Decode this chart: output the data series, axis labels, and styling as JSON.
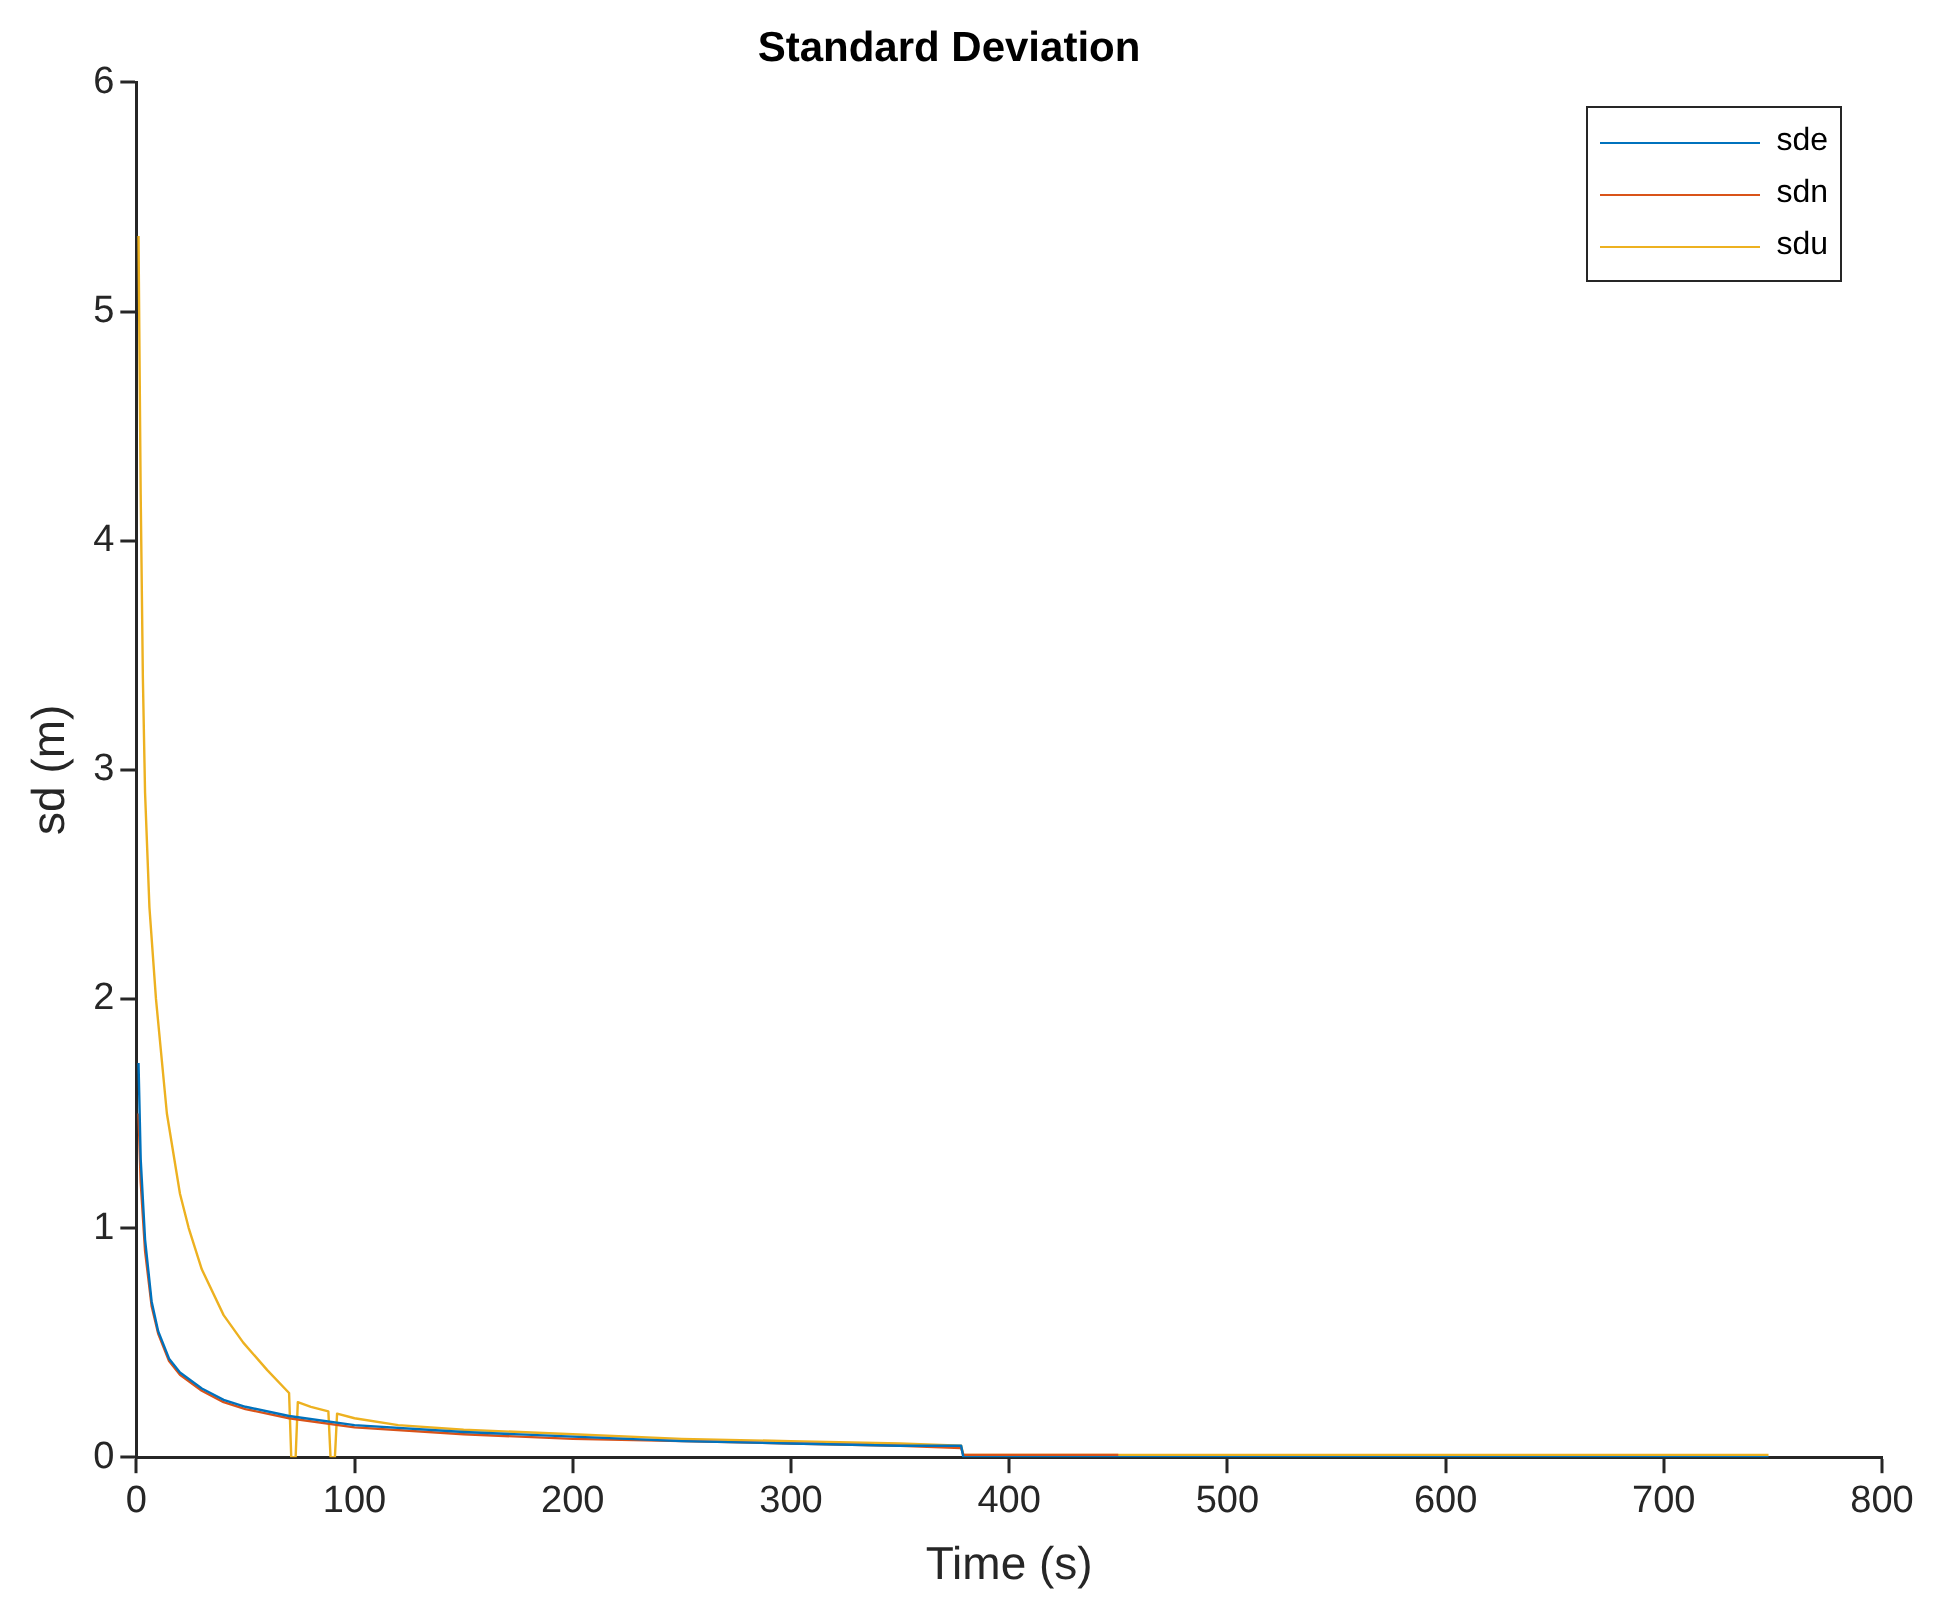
{
  "chart_data": {
    "type": "line",
    "title": "Standard Deviation",
    "xlabel": "Time (s)",
    "ylabel": "sd (m)",
    "xlim": [
      0,
      800
    ],
    "xticks": [
      0,
      100,
      200,
      300,
      400,
      500,
      600,
      700,
      800
    ],
    "ylim": [
      0,
      6
    ],
    "yticks": [
      0,
      1,
      2,
      3,
      4,
      5,
      6
    ],
    "grid": false,
    "legend": "top right",
    "marker": "none",
    "line_style": "solid",
    "series": [
      {
        "name": "sde",
        "color": "#0072bd",
        "x": [
          1,
          2,
          4,
          7,
          10,
          15,
          20,
          30,
          40,
          50,
          70,
          100,
          150,
          200,
          250,
          300,
          350,
          378,
          379,
          450,
          550,
          650,
          748
        ],
        "values": [
          1.72,
          1.3,
          0.95,
          0.68,
          0.55,
          0.43,
          0.37,
          0.3,
          0.25,
          0.22,
          0.18,
          0.14,
          0.11,
          0.09,
          0.07,
          0.06,
          0.05,
          0.05,
          0.0,
          0.0,
          0.0,
          0.0,
          0.0
        ]
      },
      {
        "name": "sdn",
        "color": "#d95319",
        "x": [
          1,
          2,
          4,
          7,
          10,
          15,
          20,
          30,
          40,
          50,
          70,
          100,
          150,
          200,
          250,
          300,
          350,
          378,
          379,
          450
        ],
        "values": [
          1.5,
          1.2,
          0.9,
          0.66,
          0.54,
          0.42,
          0.36,
          0.29,
          0.24,
          0.21,
          0.17,
          0.13,
          0.1,
          0.08,
          0.07,
          0.06,
          0.05,
          0.04,
          0.01,
          0.01
        ]
      },
      {
        "name": "sdu",
        "color": "#edb120",
        "x": [
          1,
          2,
          3,
          4,
          6,
          9,
          14,
          20,
          24,
          30,
          40,
          49,
          60,
          70,
          71,
          73,
          74,
          80,
          88,
          89,
          91,
          92,
          100,
          120,
          150,
          200,
          250,
          300,
          350,
          378,
          379,
          450,
          550,
          650,
          748
        ],
        "values": [
          5.33,
          4.2,
          3.4,
          2.9,
          2.4,
          2.0,
          1.5,
          1.15,
          1.0,
          0.82,
          0.62,
          0.5,
          0.38,
          0.28,
          0,
          0,
          0.24,
          0.22,
          0.2,
          0,
          0,
          0.19,
          0.17,
          0.14,
          0.12,
          0.1,
          0.08,
          0.07,
          0.06,
          0.05,
          0.01,
          0.01,
          0.01,
          0.01,
          0.01
        ]
      }
    ]
  }
}
